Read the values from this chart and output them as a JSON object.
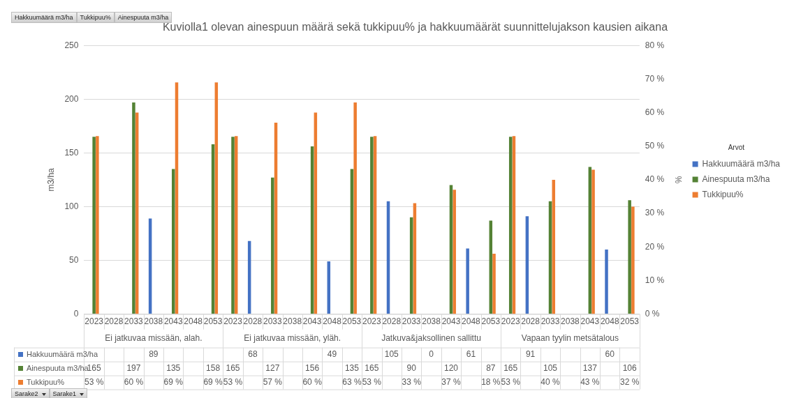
{
  "chart_data": {
    "type": "bar",
    "title": "Kuviolla1 olevan ainespuun määrä sekä tukkipuu% ja hakkuumäärät suunnittelujakson kausien aikana",
    "categories": [
      "2023",
      "2028",
      "2033",
      "2038",
      "2043",
      "2048",
      "2053",
      "2023",
      "2028",
      "2033",
      "2038",
      "2043",
      "2048",
      "2053",
      "2023",
      "2028",
      "2033",
      "2038",
      "2043",
      "2048",
      "2053",
      "2023",
      "2028",
      "2033",
      "2038",
      "2043",
      "2048",
      "2053"
    ],
    "series": [
      {
        "name": "Hakkuumäärä m3/ha",
        "color": "#4472c4",
        "values": [
          null,
          null,
          null,
          89,
          null,
          null,
          null,
          null,
          68,
          null,
          null,
          null,
          49,
          null,
          null,
          105,
          null,
          0,
          null,
          61,
          null,
          null,
          91,
          null,
          null,
          null,
          60,
          null
        ],
        "value_labels": [
          null,
          null,
          null,
          "89",
          null,
          null,
          null,
          null,
          "68",
          null,
          null,
          null,
          "49",
          null,
          null,
          "105",
          null,
          "0",
          null,
          "61",
          null,
          null,
          "91",
          null,
          null,
          null,
          "60",
          null
        ]
      },
      {
        "name": "Ainespuuta m3/ha",
        "color": "#548235",
        "values": [
          165,
          null,
          197,
          null,
          135,
          null,
          158,
          165,
          null,
          127,
          null,
          156,
          null,
          135,
          165,
          null,
          90,
          null,
          120,
          null,
          87,
          165,
          null,
          105,
          null,
          137,
          null,
          106
        ],
        "value_labels": [
          "165",
          null,
          "197",
          null,
          "135",
          null,
          "158",
          "165",
          null,
          "127",
          null,
          "156",
          null,
          "135",
          "165",
          null,
          "90",
          null,
          "120",
          null,
          "87",
          "165",
          null,
          "105",
          null,
          "137",
          null,
          "106"
        ]
      },
      {
        "name": "Tukkipuu%",
        "color": "#ed7d31",
        "axis": "y2",
        "values": [
          53,
          null,
          60,
          null,
          69,
          null,
          69,
          53,
          null,
          57,
          null,
          60,
          null,
          63,
          53,
          null,
          33,
          null,
          37,
          null,
          18,
          53,
          null,
          40,
          null,
          43,
          null,
          32
        ],
        "value_labels": [
          "53 %",
          null,
          "60 %",
          null,
          "69 %",
          null,
          "69 %",
          "53 %",
          null,
          "57 %",
          null,
          "60 %",
          null,
          "63 %",
          "53 %",
          null,
          "33 %",
          null,
          "37 %",
          null,
          "18 %",
          "53 %",
          null,
          "40 %",
          null,
          "43 %",
          null,
          "32 %"
        ]
      }
    ],
    "ylabel": "m3/ha",
    "y2label": "%",
    "ylim": [
      0,
      250
    ],
    "yticks": [
      0,
      50,
      100,
      150,
      200,
      250
    ],
    "y2lim": [
      0,
      80
    ],
    "y2ticks": [
      {
        "value": 0,
        "label": "0 %"
      },
      {
        "value": 10,
        "label": "10 %"
      },
      {
        "value": 20,
        "label": "20 %"
      },
      {
        "value": 30,
        "label": "30 %"
      },
      {
        "value": 40,
        "label": "40 %"
      },
      {
        "value": 50,
        "label": "50 %"
      },
      {
        "value": 60,
        "label": "60 %"
      },
      {
        "value": 70,
        "label": "70 %"
      },
      {
        "value": 80,
        "label": "80 %"
      }
    ],
    "grid": "y",
    "legend": "right",
    "legend_title": "Arvot",
    "annotations": [
      "Hakkuumäärä m3/ha",
      "Tukkipuu%",
      "Ainespuuta m3/ha",
      "Ei jatkuvaa missään, alah.",
      "Ei jatkuvaa missään, yläh.",
      "Jatkuva&jaksollinen sallittu",
      "Vapaan tyylin metsätalous",
      "Sarake2",
      "Sarake1"
    ]
  }
}
